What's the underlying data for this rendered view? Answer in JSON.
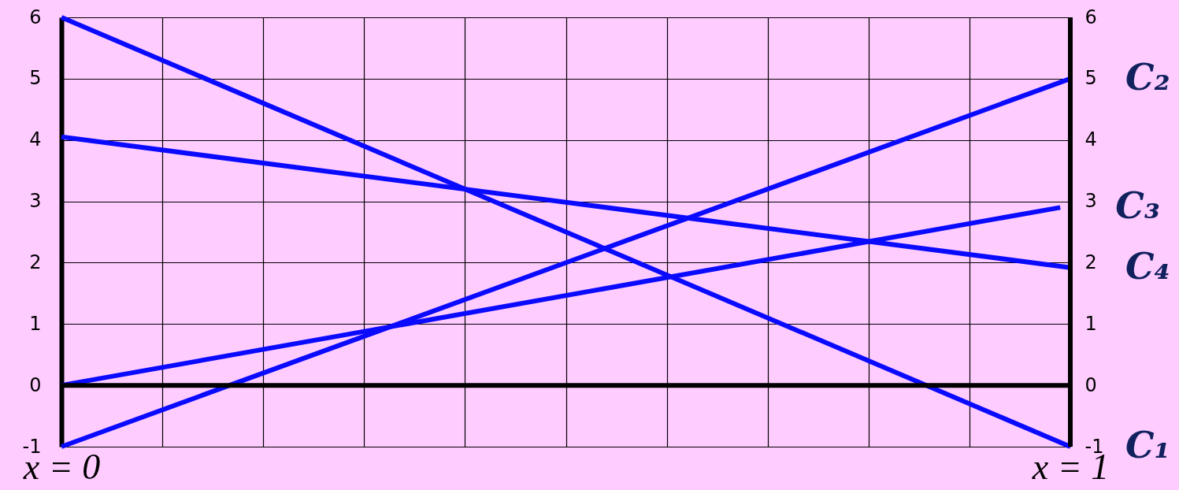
{
  "chart_data": {
    "type": "line",
    "xlim": [
      0,
      1
    ],
    "ylim": [
      -1,
      6
    ],
    "y2lim": [
      -1,
      6
    ],
    "xticks": [
      {
        "value": 0,
        "label": "x = 0"
      },
      {
        "value": 0.1,
        "label": null
      },
      {
        "value": 0.2,
        "label": null
      },
      {
        "value": 0.3,
        "label": null
      },
      {
        "value": 0.4,
        "label": null
      },
      {
        "value": 0.5,
        "label": null
      },
      {
        "value": 0.6,
        "label": null
      },
      {
        "value": 0.7,
        "label": null
      },
      {
        "value": 0.8,
        "label": null
      },
      {
        "value": 0.9,
        "label": null
      },
      {
        "value": 1,
        "label": "x = 1"
      }
    ],
    "yticks": [
      -1,
      0,
      1,
      2,
      3,
      4,
      5,
      6
    ],
    "y2ticks": [
      -1,
      0,
      1,
      2,
      3,
      4,
      5,
      6
    ],
    "x": [
      0,
      1
    ],
    "series": [
      {
        "name": "C₁",
        "color": "#0a0aff",
        "values": [
          6,
          -1
        ]
      },
      {
        "name": "C₂",
        "color": "#0a0aff",
        "values": [
          -1,
          5
        ]
      },
      {
        "name": "C₃",
        "color": "#0a0aff",
        "x": [
          0,
          0.99
        ],
        "values": [
          0,
          2.9
        ]
      },
      {
        "name": "C₄",
        "color": "#0a0aff",
        "values": [
          4.05,
          1.92
        ]
      }
    ],
    "ref_lines": [
      {
        "axis": "y",
        "value": 0,
        "color": "#000000"
      }
    ],
    "grid": true,
    "marker": "none",
    "line_style": "solid"
  }
}
